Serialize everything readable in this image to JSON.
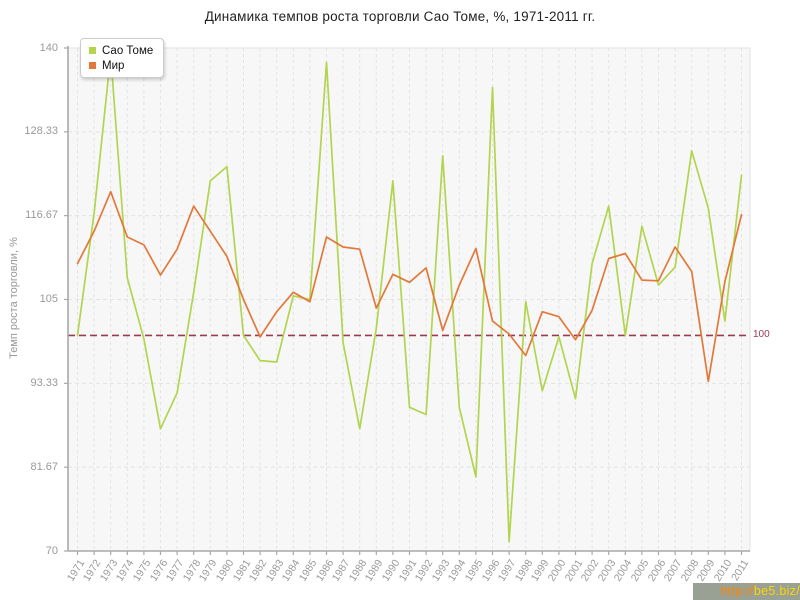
{
  "chart_data": {
    "type": "line",
    "title": "Динамика темпов роста торговли Сао Томе, %, 1971-2011 гг.",
    "xlabel": "",
    "ylabel": "Темп роста торговли, %",
    "ylim": [
      70,
      140
    ],
    "yticks": [
      {
        "value": 140,
        "label": "140"
      },
      {
        "value": 128.33,
        "label": "128.33"
      },
      {
        "value": 116.67,
        "label": "116.67"
      },
      {
        "value": 105,
        "label": "105"
      },
      {
        "value": 93.33,
        "label": "93.33"
      },
      {
        "value": 81.67,
        "label": "81.67"
      },
      {
        "value": 70,
        "label": "70"
      }
    ],
    "x": [
      "1971",
      "1972",
      "1973",
      "1974",
      "1975",
      "1976",
      "1977",
      "1978",
      "1979",
      "1980",
      "1981",
      "1982",
      "1983",
      "1984",
      "1985",
      "1986",
      "1987",
      "1988",
      "1989",
      "1990",
      "1991",
      "1992",
      "1993",
      "1994",
      "1995",
      "1996",
      "1997",
      "1998",
      "1999",
      "2000",
      "2001",
      "2002",
      "2003",
      "2004",
      "2005",
      "2006",
      "2007",
      "2008",
      "2009",
      "2010",
      "2011"
    ],
    "series": [
      {
        "name": "Сао Томе",
        "color": "#b3d44f",
        "values": [
          100,
          117,
          139,
          108,
          99.5,
          87,
          92,
          106,
          121.5,
          123.5,
          100,
          96.5,
          96.3,
          105.5,
          105,
          138,
          99,
          87,
          101,
          121.5,
          90,
          89,
          125,
          90,
          80.3,
          134.5,
          71.3,
          104.7,
          92.3,
          99.8,
          91.2,
          110,
          118,
          100,
          115.2,
          107,
          109.5,
          125.7,
          117.7,
          102,
          122.3
        ]
      },
      {
        "name": "Мир",
        "color": "#e2793a",
        "values": [
          110,
          114.5,
          120,
          113.7,
          112.6,
          108.4,
          112,
          118,
          114.5,
          111,
          105,
          99.8,
          103.3,
          106,
          104.7,
          113.7,
          112.3,
          112,
          103.8,
          108.5,
          107.4,
          109.4,
          100.7,
          107,
          112.1,
          102,
          100.2,
          97.2,
          103.3,
          102.6,
          99.4,
          103.5,
          110.7,
          111.4,
          107.7,
          107.6,
          112.3,
          108.9,
          93.6,
          107.5,
          116.8
        ]
      }
    ],
    "reference_line": {
      "value": 100,
      "label": "100",
      "color": "#9c3a4e"
    },
    "grid": true,
    "legend_position": "top-left",
    "colors": {
      "plot_bg": "#f7f7f7",
      "plot_border": "#e0e0e0",
      "gridline": "#e3e3e3",
      "axis": "#a8a8a8",
      "tick_text": "#999999"
    }
  },
  "watermark": {
    "protocol": "http://",
    "domain": "be5.biz/",
    "bg_color": "#99a194",
    "protocol_color": "#ff8400",
    "domain_color": "#ffd400"
  }
}
